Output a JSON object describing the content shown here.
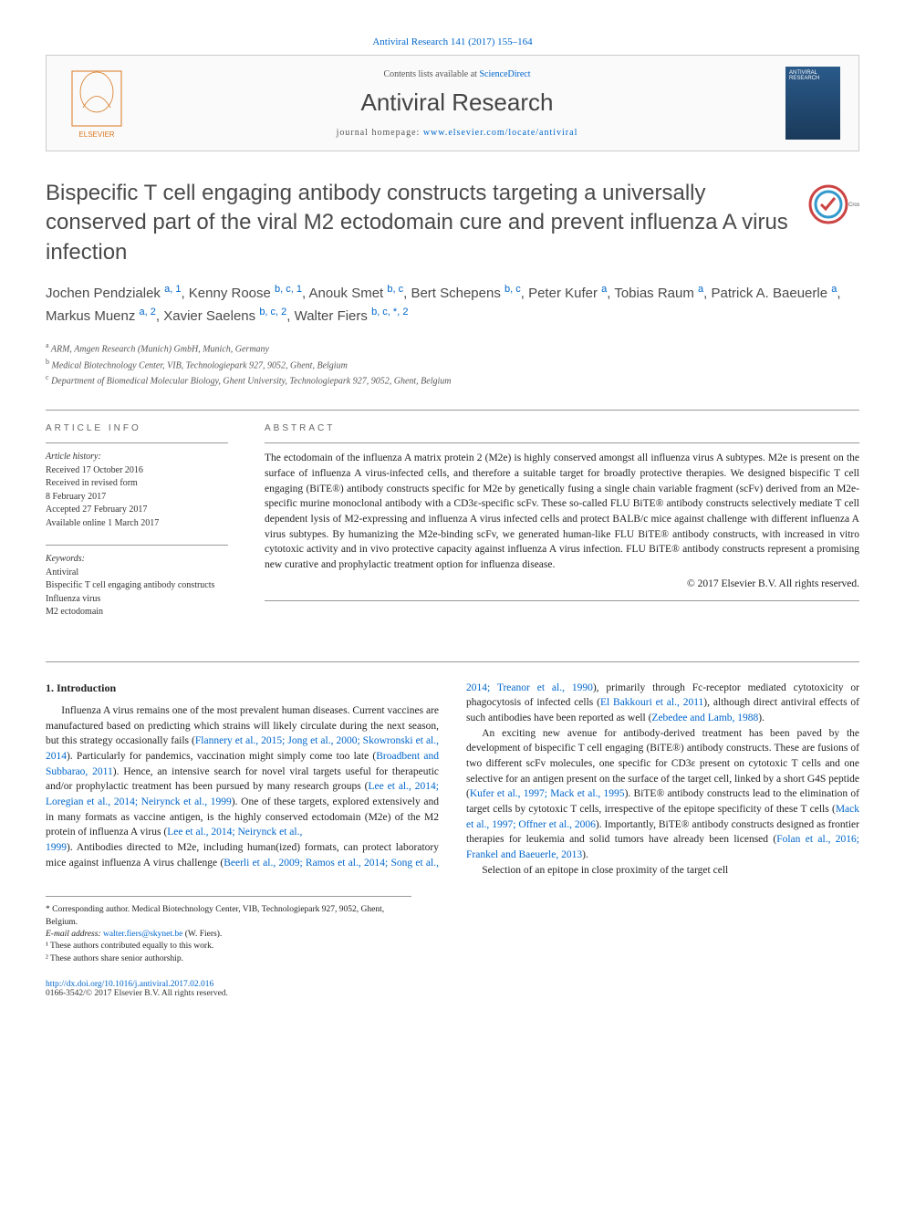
{
  "citation": "Antiviral Research 141 (2017) 155–164",
  "header": {
    "contents_prefix": "Contents lists available at ",
    "contents_link": "ScienceDirect",
    "journal": "Antiviral Research",
    "homepage_prefix": "journal homepage: ",
    "homepage_link": "www.elsevier.com/locate/antiviral"
  },
  "title": "Bispecific T cell engaging antibody constructs targeting a universally conserved part of the viral M2 ectodomain cure and prevent influenza A virus infection",
  "crossmark_label": "CrossMark",
  "authors": [
    {
      "name": "Jochen Pendzialek",
      "sup": "a, 1"
    },
    {
      "name": "Kenny Roose",
      "sup": "b, c, 1"
    },
    {
      "name": "Anouk Smet",
      "sup": "b, c"
    },
    {
      "name": "Bert Schepens",
      "sup": "b, c"
    },
    {
      "name": "Peter Kufer",
      "sup": "a"
    },
    {
      "name": "Tobias Raum",
      "sup": "a"
    },
    {
      "name": "Patrick A. Baeuerle",
      "sup": "a"
    },
    {
      "name": "Markus Muenz",
      "sup": "a, 2"
    },
    {
      "name": "Xavier Saelens",
      "sup": "b, c, 2"
    },
    {
      "name": "Walter Fiers",
      "sup": "b, c, *, 2"
    }
  ],
  "affiliations": [
    {
      "sup": "a",
      "text": "ARM, Amgen Research (Munich) GmbH, Munich, Germany"
    },
    {
      "sup": "b",
      "text": "Medical Biotechnology Center, VIB, Technologiepark 927, 9052, Ghent, Belgium"
    },
    {
      "sup": "c",
      "text": "Department of Biomedical Molecular Biology, Ghent University, Technologiepark 927, 9052, Ghent, Belgium"
    }
  ],
  "info": {
    "label": "ARTICLE INFO",
    "history_hdr": "Article history:",
    "history": [
      "Received 17 October 2016",
      "Received in revised form",
      "8 February 2017",
      "Accepted 27 February 2017",
      "Available online 1 March 2017"
    ],
    "keywords_hdr": "Keywords:",
    "keywords": [
      "Antiviral",
      "Bispecific T cell engaging antibody constructs",
      "Influenza virus",
      "M2 ectodomain"
    ]
  },
  "abstract": {
    "label": "ABSTRACT",
    "text": "The ectodomain of the influenza A matrix protein 2 (M2e) is highly conserved amongst all influenza virus A subtypes. M2e is present on the surface of influenza A virus-infected cells, and therefore a suitable target for broadly protective therapies. We designed bispecific T cell engaging (BiTE®) antibody constructs specific for M2e by genetically fusing a single chain variable fragment (scFv) derived from an M2e-specific murine monoclonal antibody with a CD3ε-specific scFv. These so-called FLU BiTE® antibody constructs selectively mediate T cell dependent lysis of M2-expressing and influenza A virus infected cells and protect BALB/c mice against challenge with different influenza A virus subtypes. By humanizing the M2e-binding scFv, we generated human-like FLU BiTE® antibody constructs, with increased in vitro cytotoxic activity and in vivo protective capacity against influenza A virus infection. FLU BiTE® antibody constructs represent a promising new curative and prophylactic treatment option for influenza disease.",
    "copyright": "© 2017 Elsevier B.V. All rights reserved."
  },
  "body": {
    "heading": "1. Introduction",
    "p1_a": "Influenza A virus remains one of the most prevalent human diseases. Current vaccines are manufactured based on predicting which strains will likely circulate during the next season, but this strategy occasionally fails (",
    "p1_ref1": "Flannery et al., 2015; Jong et al., 2000; Skowronski et al., 2014",
    "p1_b": "). Particularly for pandemics, vaccination might simply come too late (",
    "p1_ref2": "Broadbent and Subbarao, 2011",
    "p1_c": "). Hence, an intensive search for novel viral targets useful for therapeutic and/or prophylactic treatment has been pursued by many research groups (",
    "p1_ref3": "Lee et al., 2014; Loregian et al., 2014; Neirynck et al., 1999",
    "p1_d": "). One of these targets, explored extensively and in many formats as vaccine antigen, is the highly conserved ectodomain (M2e) of the M2 protein of influenza A virus (",
    "p1_ref4": "Lee et al., 2014; Neirynck et al.,",
    "p2_ref1": "1999",
    "p2_a": "). Antibodies directed to M2e, including human(ized) formats, can protect laboratory mice against influenza A virus challenge (",
    "p2_ref2": "Beerli et al., 2009; Ramos et al., 2014; Song et al., 2014; Treanor et al., 1990",
    "p2_b": "), primarily through Fc-receptor mediated cytotoxicity or phagocytosis of infected cells (",
    "p2_ref3": "El Bakkouri et al., 2011",
    "p2_c": "), although direct antiviral effects of such antibodies have been reported as well (",
    "p2_ref4": "Zebedee and Lamb, 1988",
    "p2_d": ").",
    "p3_a": "An exciting new avenue for antibody-derived treatment has been paved by the development of bispecific T cell engaging (BiTE®) antibody constructs. These are fusions of two different scFv molecules, one specific for CD3ε present on cytotoxic T cells and one selective for an antigen present on the surface of the target cell, linked by a short G4S peptide (",
    "p3_ref1": "Kufer et al., 1997; Mack et al., 1995",
    "p3_b": "). BiTE® antibody constructs lead to the elimination of target cells by cytotoxic T cells, irrespective of the epitope specificity of these T cells (",
    "p3_ref2": "Mack et al., 1997; Offner et al., 2006",
    "p3_c": "). Importantly, BiTE® antibody constructs designed as frontier therapies for leukemia and solid tumors have already been licensed (",
    "p3_ref3": "Folan et al., 2016; Frankel and Baeuerle, 2013",
    "p3_d": ").",
    "p4": "Selection of an epitope in close proximity of the target cell"
  },
  "footnotes": {
    "corr": "* Corresponding author. Medical Biotechnology Center, VIB, Technologiepark 927, 9052, Ghent, Belgium.",
    "email_label": "E-mail address: ",
    "email": "walter.fiers@skynet.be",
    "email_suffix": " (W. Fiers).",
    "n1": "¹ These authors contributed equally to this work.",
    "n2": "² These authors share senior authorship."
  },
  "bottom": {
    "doi": "http://dx.doi.org/10.1016/j.antiviral.2017.02.016",
    "issn": "0166-3542/© 2017 Elsevier B.V. All rights reserved."
  },
  "colors": {
    "link": "#0066cc",
    "text": "#222222",
    "heading": "#4a4a4a",
    "border": "#999999"
  }
}
